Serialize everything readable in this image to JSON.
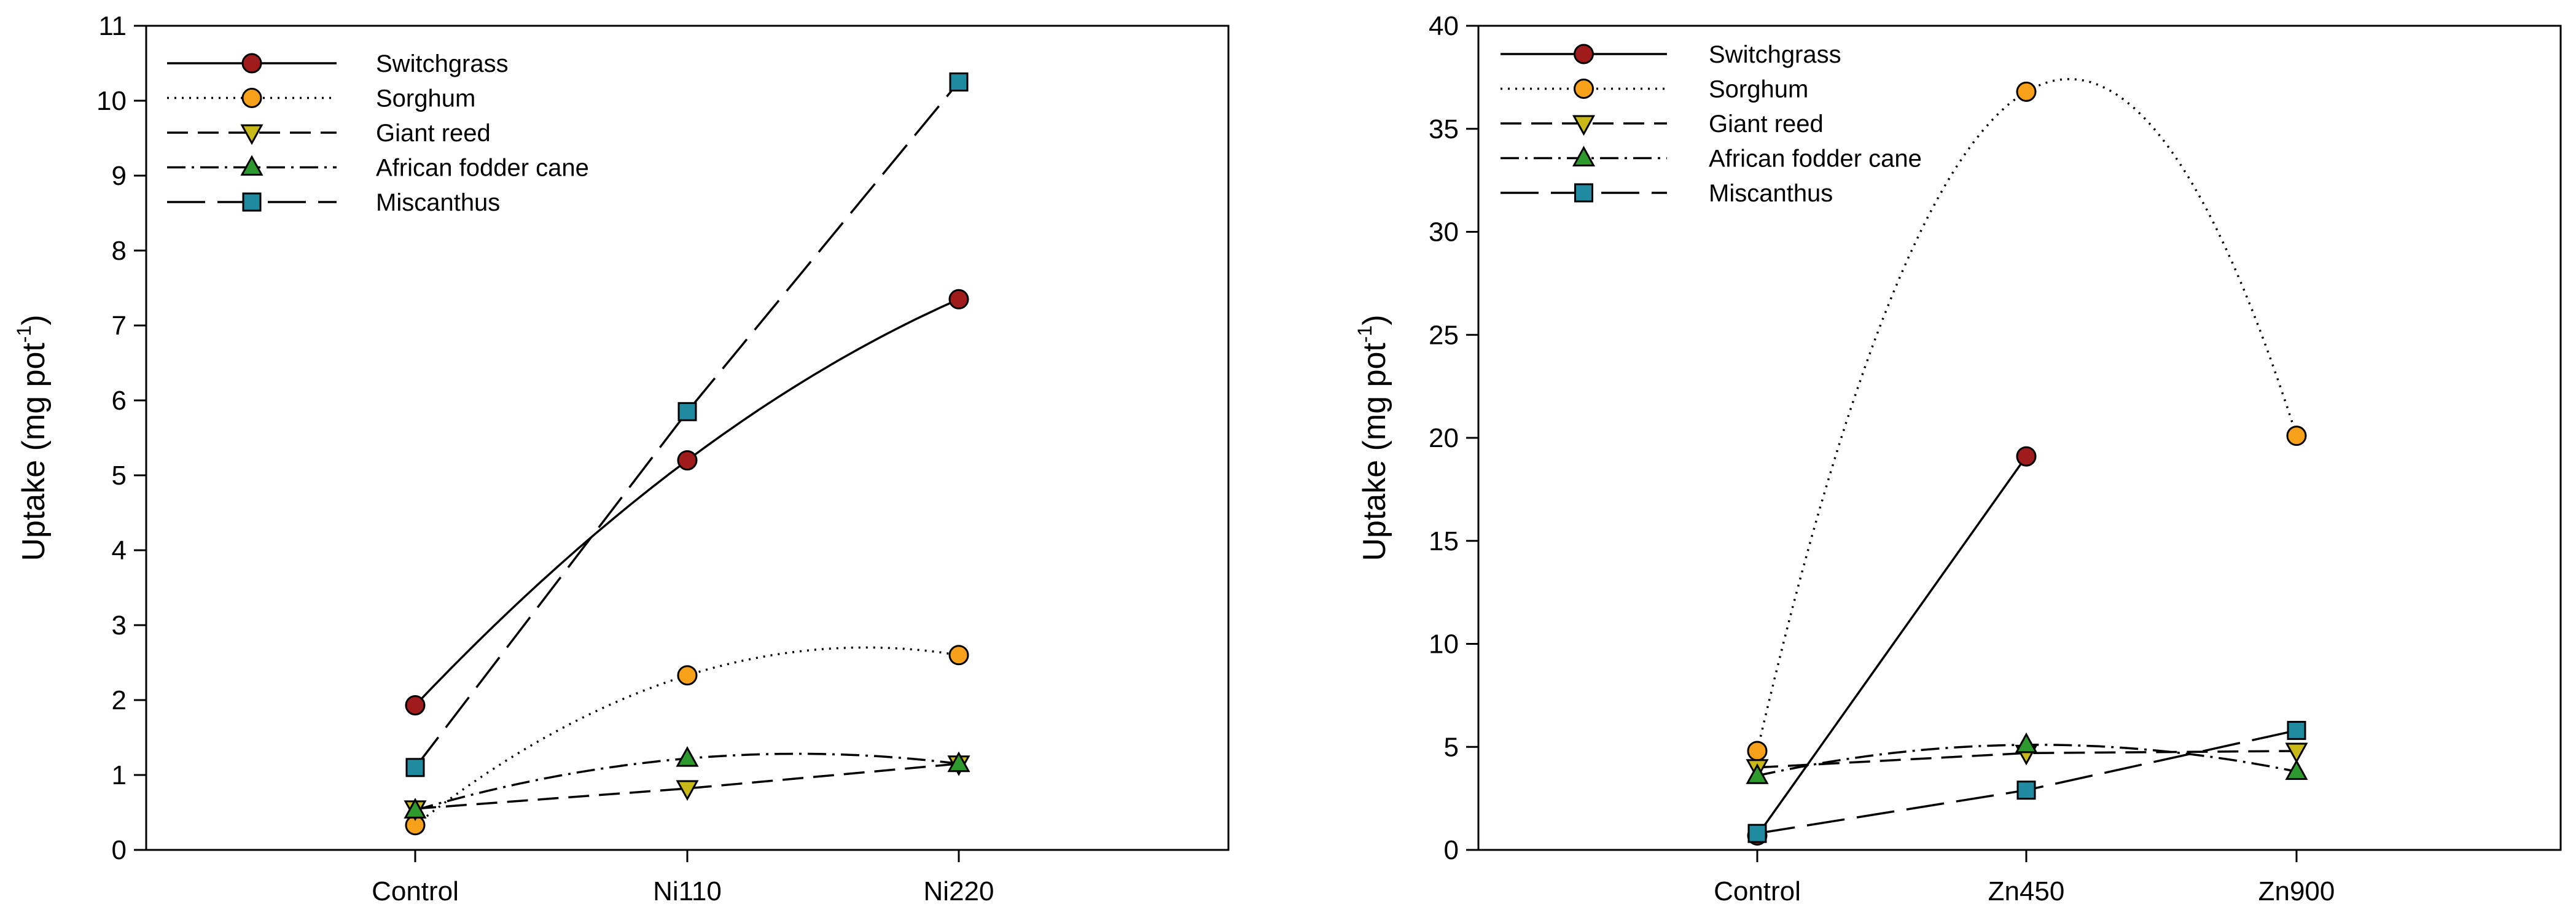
{
  "chart_data": [
    {
      "type": "line",
      "xlabel": "",
      "ylabel": "Uptake (mg pot",
      "ylabel_superscript": "-1",
      "ylabel_suffix": ")",
      "categories": [
        "Control",
        "Ni110",
        "Ni220"
      ],
      "ylim": [
        0,
        11
      ],
      "yticks": [
        "0",
        "1",
        "2",
        "3",
        "4",
        "5",
        "6",
        "7",
        "8",
        "9",
        "10",
        "11"
      ],
      "legend_position": "top-left",
      "series": [
        {
          "name": "Switchgrass",
          "marker": "circle",
          "color": "#a01c1c",
          "dash": "solid",
          "values": [
            1.93,
            5.2,
            7.35
          ]
        },
        {
          "name": "Sorghum",
          "marker": "circle",
          "color": "#f7a11a",
          "dash": "dotted",
          "values": [
            0.33,
            2.33,
            2.6
          ]
        },
        {
          "name": "Giant reed",
          "marker": "triangle-down",
          "color": "#c8b818",
          "dash": "dashed",
          "values": [
            0.55,
            0.82,
            1.15
          ]
        },
        {
          "name": "African fodder cane",
          "marker": "triangle-up",
          "color": "#2e9a2e",
          "dash": "dashdot",
          "values": [
            0.53,
            1.22,
            1.15
          ]
        },
        {
          "name": "Miscanthus",
          "marker": "square",
          "color": "#1f8aa0",
          "dash": "longdash",
          "values": [
            1.1,
            5.85,
            10.25
          ]
        }
      ]
    },
    {
      "type": "line",
      "xlabel": "",
      "ylabel": "Uptake (mg pot",
      "ylabel_superscript": "-1",
      "ylabel_suffix": ")",
      "categories": [
        "Control",
        "Zn450",
        "Zn900"
      ],
      "ylim": [
        0,
        40
      ],
      "yticks": [
        "0",
        "5",
        "10",
        "15",
        "20",
        "25",
        "30",
        "35",
        "40"
      ],
      "legend_position": "top-left",
      "series": [
        {
          "name": "Switchgrass",
          "marker": "circle",
          "color": "#a01c1c",
          "dash": "solid",
          "values": [
            0.7,
            19.1,
            null
          ]
        },
        {
          "name": "Sorghum",
          "marker": "circle",
          "color": "#f7a11a",
          "dash": "dotted",
          "values": [
            4.8,
            36.8,
            20.1
          ]
        },
        {
          "name": "Giant reed",
          "marker": "triangle-down",
          "color": "#c8b818",
          "dash": "dashed",
          "values": [
            4.0,
            4.7,
            4.8
          ]
        },
        {
          "name": "African fodder cane",
          "marker": "triangle-up",
          "color": "#2e9a2e",
          "dash": "dashdot",
          "values": [
            3.6,
            5.1,
            3.8
          ]
        },
        {
          "name": "Miscanthus",
          "marker": "square",
          "color": "#1f8aa0",
          "dash": "longdash",
          "values": [
            0.8,
            2.9,
            5.8
          ]
        }
      ]
    }
  ]
}
